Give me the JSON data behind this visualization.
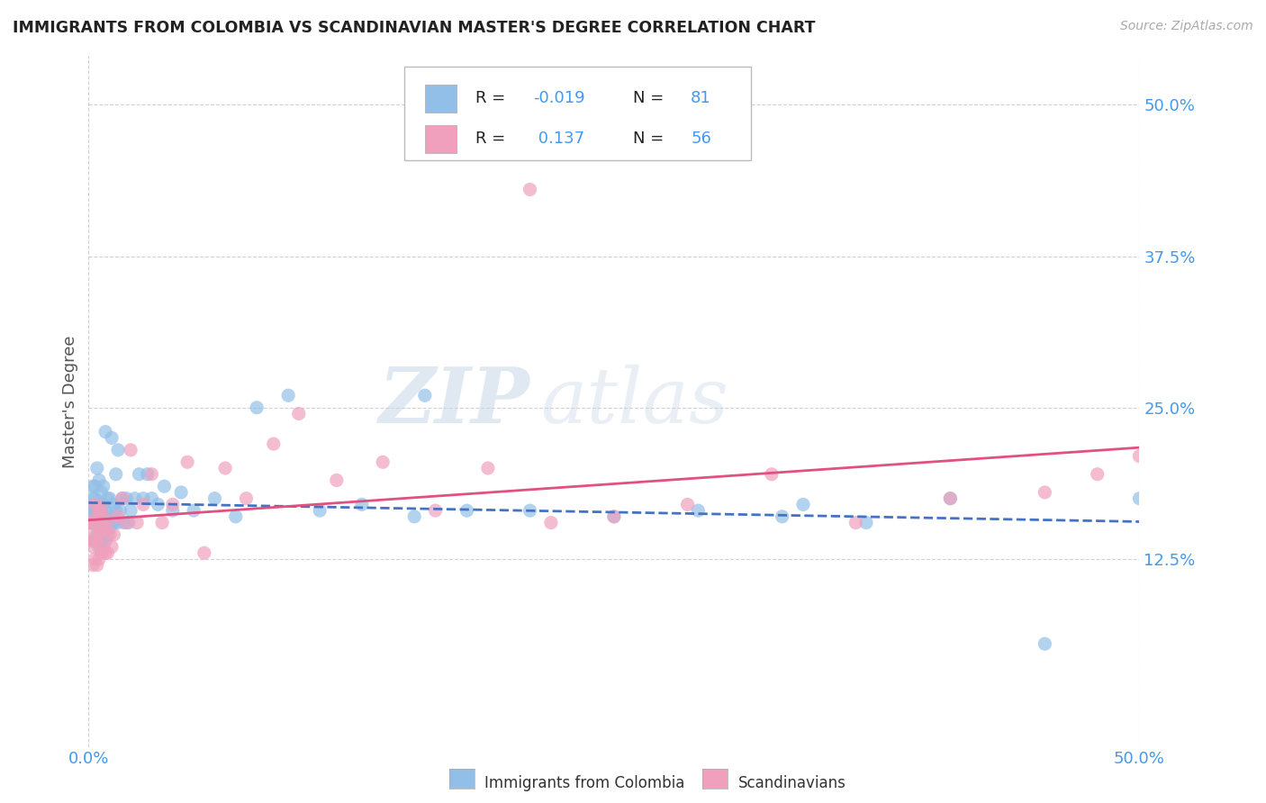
{
  "title": "IMMIGRANTS FROM COLOMBIA VS SCANDINAVIAN MASTER'S DEGREE CORRELATION CHART",
  "source": "Source: ZipAtlas.com",
  "ylabel": "Master's Degree",
  "xlim": [
    0.0,
    0.5
  ],
  "ylim": [
    -0.03,
    0.54
  ],
  "xtick_labels": [
    "0.0%",
    "50.0%"
  ],
  "xtick_positions": [
    0.0,
    0.5
  ],
  "ytick_labels": [
    "12.5%",
    "25.0%",
    "37.5%",
    "50.0%"
  ],
  "ytick_positions": [
    0.125,
    0.25,
    0.375,
    0.5
  ],
  "colombia_color": "#92bfe8",
  "scandinavia_color": "#f0a0bc",
  "colombia_R": -0.019,
  "colombia_N": 81,
  "scandinavia_R": 0.137,
  "scandinavia_N": 56,
  "legend_label_colombia": "Immigrants from Colombia",
  "legend_label_scandinavia": "Scandinavians",
  "watermark_zip": "ZIP",
  "watermark_atlas": "atlas",
  "colombia_scatter_x": [
    0.001,
    0.001,
    0.002,
    0.002,
    0.002,
    0.002,
    0.002,
    0.003,
    0.003,
    0.003,
    0.003,
    0.003,
    0.004,
    0.004,
    0.004,
    0.004,
    0.005,
    0.005,
    0.005,
    0.005,
    0.005,
    0.006,
    0.006,
    0.006,
    0.006,
    0.007,
    0.007,
    0.007,
    0.007,
    0.008,
    0.008,
    0.008,
    0.008,
    0.009,
    0.009,
    0.009,
    0.01,
    0.01,
    0.01,
    0.011,
    0.011,
    0.012,
    0.012,
    0.013,
    0.013,
    0.014,
    0.014,
    0.015,
    0.016,
    0.017,
    0.018,
    0.019,
    0.02,
    0.022,
    0.024,
    0.026,
    0.028,
    0.03,
    0.033,
    0.036,
    0.04,
    0.044,
    0.05,
    0.06,
    0.07,
    0.08,
    0.095,
    0.11,
    0.13,
    0.155,
    0.18,
    0.21,
    0.25,
    0.29,
    0.33,
    0.37,
    0.41,
    0.455,
    0.5,
    0.16,
    0.34
  ],
  "colombia_scatter_y": [
    0.155,
    0.165,
    0.14,
    0.155,
    0.165,
    0.175,
    0.185,
    0.14,
    0.155,
    0.165,
    0.175,
    0.185,
    0.145,
    0.155,
    0.165,
    0.2,
    0.135,
    0.15,
    0.16,
    0.17,
    0.19,
    0.14,
    0.155,
    0.165,
    0.18,
    0.145,
    0.16,
    0.17,
    0.185,
    0.14,
    0.155,
    0.165,
    0.23,
    0.145,
    0.158,
    0.175,
    0.15,
    0.16,
    0.175,
    0.155,
    0.225,
    0.155,
    0.17,
    0.165,
    0.195,
    0.155,
    0.215,
    0.165,
    0.175,
    0.155,
    0.175,
    0.155,
    0.165,
    0.175,
    0.195,
    0.175,
    0.195,
    0.175,
    0.17,
    0.185,
    0.165,
    0.18,
    0.165,
    0.175,
    0.16,
    0.25,
    0.26,
    0.165,
    0.17,
    0.16,
    0.165,
    0.165,
    0.16,
    0.165,
    0.16,
    0.155,
    0.175,
    0.055,
    0.175,
    0.26,
    0.17
  ],
  "scandinavia_scatter_x": [
    0.001,
    0.001,
    0.002,
    0.002,
    0.002,
    0.003,
    0.003,
    0.003,
    0.003,
    0.004,
    0.004,
    0.004,
    0.005,
    0.005,
    0.005,
    0.006,
    0.006,
    0.006,
    0.007,
    0.007,
    0.008,
    0.008,
    0.009,
    0.009,
    0.01,
    0.011,
    0.012,
    0.014,
    0.016,
    0.018,
    0.02,
    0.023,
    0.026,
    0.03,
    0.035,
    0.04,
    0.047,
    0.055,
    0.065,
    0.075,
    0.088,
    0.1,
    0.118,
    0.14,
    0.165,
    0.19,
    0.22,
    0.25,
    0.285,
    0.325,
    0.365,
    0.41,
    0.455,
    0.5,
    0.21,
    0.48
  ],
  "scandinavia_scatter_y": [
    0.14,
    0.155,
    0.12,
    0.135,
    0.15,
    0.125,
    0.14,
    0.155,
    0.17,
    0.12,
    0.14,
    0.16,
    0.125,
    0.145,
    0.165,
    0.13,
    0.148,
    0.168,
    0.135,
    0.16,
    0.13,
    0.15,
    0.13,
    0.155,
    0.145,
    0.135,
    0.145,
    0.16,
    0.175,
    0.155,
    0.215,
    0.155,
    0.17,
    0.195,
    0.155,
    0.17,
    0.205,
    0.13,
    0.2,
    0.175,
    0.22,
    0.245,
    0.19,
    0.205,
    0.165,
    0.2,
    0.155,
    0.16,
    0.17,
    0.195,
    0.155,
    0.175,
    0.18,
    0.21,
    0.43,
    0.195
  ]
}
